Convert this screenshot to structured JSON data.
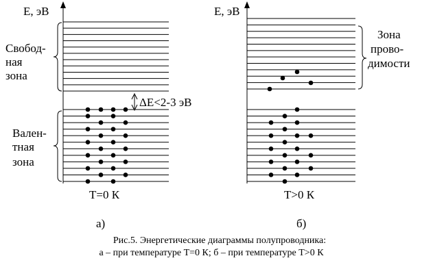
{
  "left": {
    "axis_label": "E, эВ",
    "free_band": [
      "Свобод-",
      "ная",
      "зона"
    ],
    "gap_label": "ΔE<2-3 эВ",
    "valence_band": [
      "Вален-",
      "тная",
      "зона"
    ],
    "temperature": "T=0 К",
    "letter": "а)"
  },
  "right": {
    "axis_label": "E, эВ",
    "conduction_band": [
      "Зона",
      "прово-",
      "димости"
    ],
    "temperature": "T>0 К",
    "letter": "б)"
  },
  "caption": [
    "Рис.5. Энергетические диаграммы полупроводника:",
    "а – при температуре T=0 К; б – при температуре T>0 К"
  ]
}
